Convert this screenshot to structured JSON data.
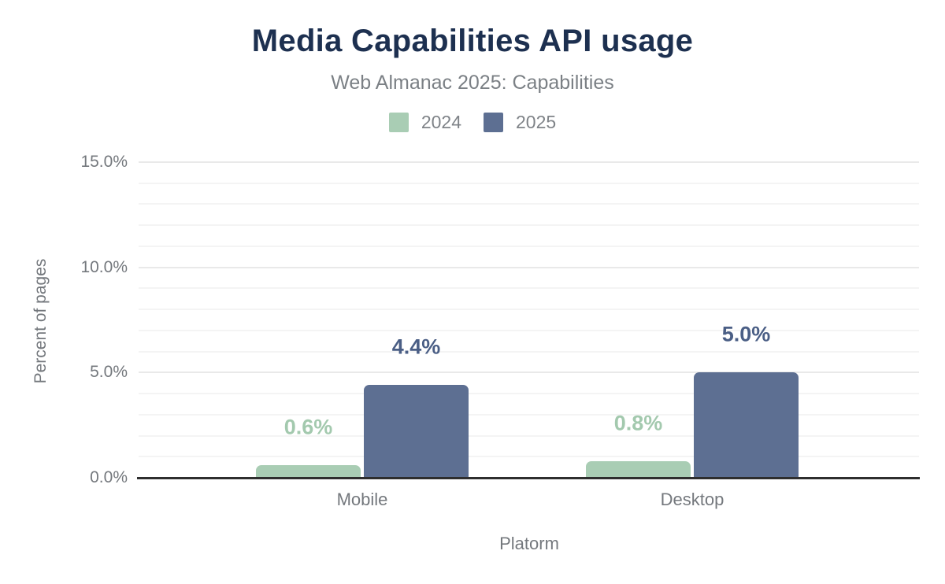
{
  "header": {
    "title": "Media Capabilities API usage",
    "subtitle": "Web Almanac 2025: Capabilities"
  },
  "legend": [
    {
      "label": "2024",
      "color": "#a9cdb4"
    },
    {
      "label": "2025",
      "color": "#5d6f92"
    }
  ],
  "colors": {
    "title": "#1d3050",
    "muted_text": "#74787d",
    "axis_line": "#2e2e2e",
    "grid_minor": "#f4f4f4",
    "grid_major": "#e9e9e9"
  },
  "chart_data": {
    "type": "bar",
    "title": "Media Capabilities API usage",
    "subtitle": "Web Almanac 2025: Capabilities",
    "categories": [
      "Mobile",
      "Desktop"
    ],
    "series": [
      {
        "name": "2024",
        "color": "#a9cdb4",
        "label_color": "#a3c9ae",
        "values": [
          0.6,
          0.8
        ]
      },
      {
        "name": "2025",
        "color": "#5d6f92",
        "label_color": "#4a5e85",
        "values": [
          4.4,
          5.0
        ]
      }
    ],
    "xlabel": "Platorm",
    "ylabel": "Percent of pages",
    "ylim": [
      0,
      15
    ],
    "yticks": [
      0,
      5,
      10,
      15
    ],
    "ytick_labels": [
      "0.0%",
      "5.0%",
      "10.0%",
      "15.0%"
    ],
    "minor_grid_step": 1,
    "grid": true,
    "legend_position": "top",
    "data_label_format": "{value:.1f}%"
  }
}
